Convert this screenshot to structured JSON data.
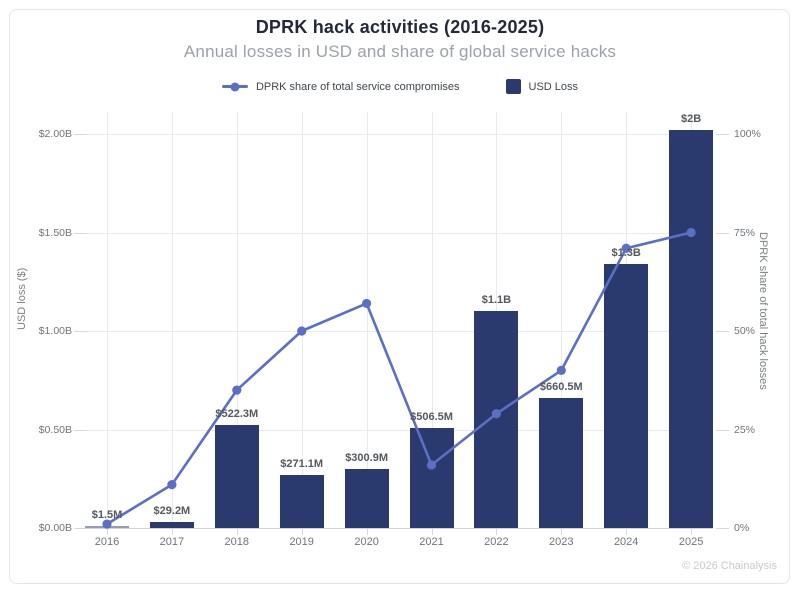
{
  "title": "DPRK hack activities (2016-2025)",
  "subtitle": "Annual losses in USD and share of global service hacks",
  "footer_credit": "© 2026 Chainalysis",
  "colors": {
    "bar": "#2b3a6e",
    "line": "#5b6fc4",
    "title_text": "#23293a",
    "subtitle_text": "#9ba1aa",
    "grid": "#e8e9ed"
  },
  "chart_data": {
    "type": "bar",
    "subtype": "combo-bar-line",
    "title": "DPRK hack activities (2016-2025)",
    "subtitle": "Annual losses in USD and share of global service hacks",
    "categories": [
      "2016",
      "2017",
      "2018",
      "2019",
      "2020",
      "2021",
      "2022",
      "2023",
      "2024",
      "2025"
    ],
    "series": [
      {
        "name": "DPRK share of total service compromises",
        "type": "line",
        "axis": "right",
        "color": "#5b6fc4",
        "values_percent": [
          1,
          11,
          35,
          50,
          57,
          16,
          29,
          40,
          71,
          75
        ]
      },
      {
        "name": "USD Loss",
        "type": "bar",
        "axis": "left",
        "color": "#2b3a6e",
        "values_usd_billions": [
          0.0015,
          0.0292,
          0.5223,
          0.2711,
          0.3009,
          0.5065,
          1.1,
          0.6605,
          1.34,
          2.02
        ],
        "labels": [
          "$1.5M",
          "$29.2M",
          "$522.3M",
          "$271.1M",
          "$300.9M",
          "$506.5M",
          "$1.1B",
          "$660.5M",
          "$1.3B",
          "$2B"
        ]
      }
    ],
    "left_axis": {
      "label": "USD loss ($)",
      "ticks": [
        "$0.00B",
        "$0.50B",
        "$1.00B",
        "$1.50B",
        "$2.00B"
      ],
      "range_billions": [
        0,
        2
      ]
    },
    "right_axis": {
      "label": "DPRK share of total hack losses",
      "ticks": [
        "0%",
        "25%",
        "50%",
        "75%",
        "100%"
      ],
      "range_percent": [
        0,
        100
      ]
    },
    "grid": true,
    "legend_position": "top"
  }
}
